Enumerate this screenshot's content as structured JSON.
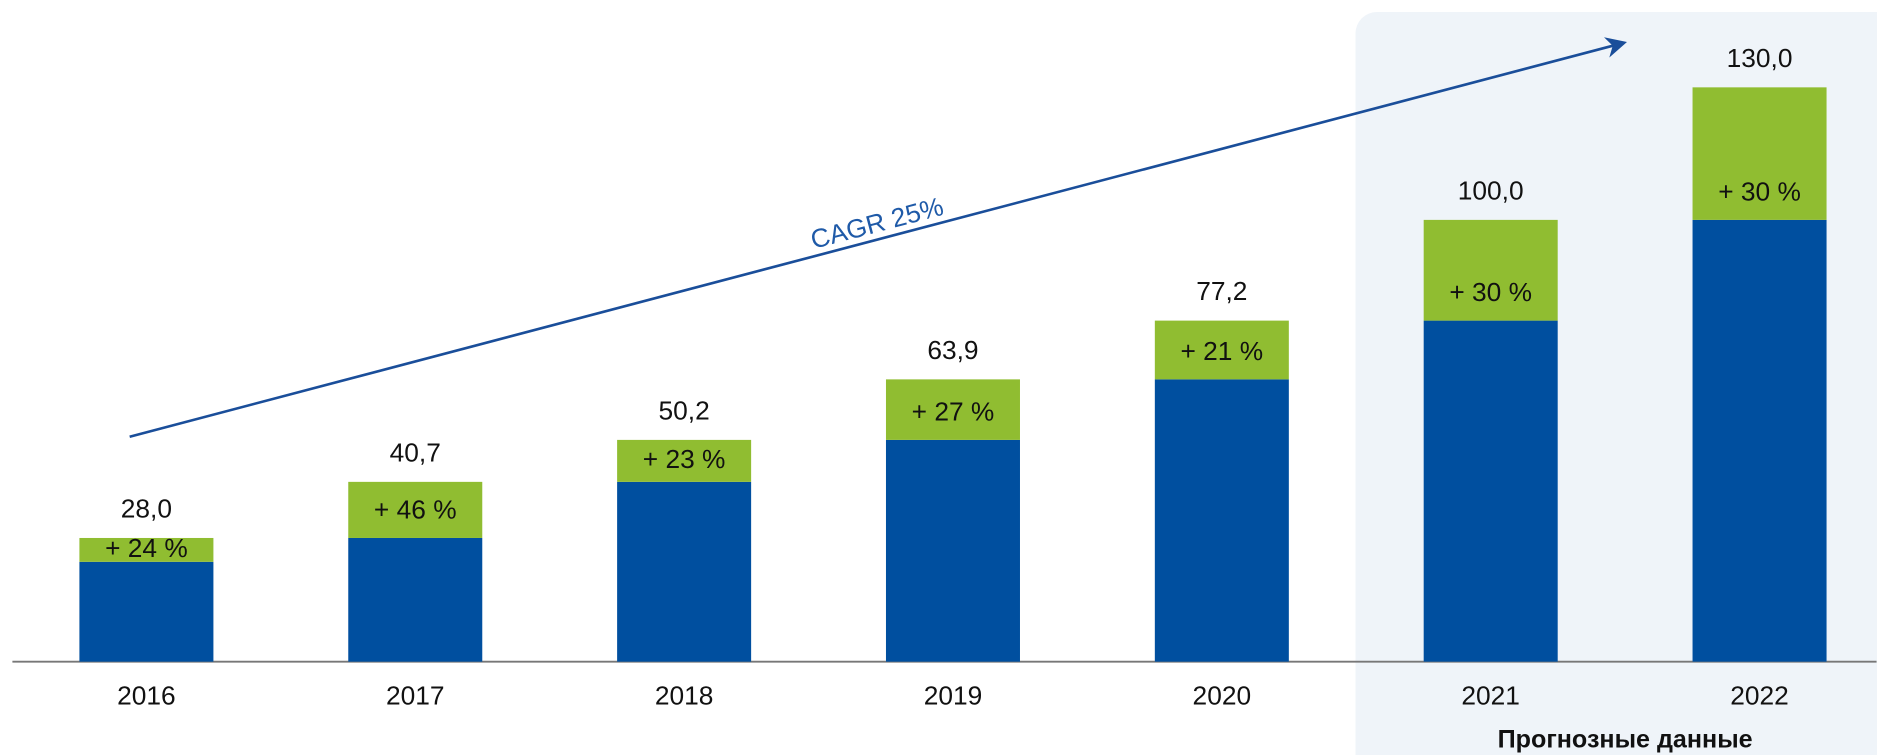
{
  "chart_data": {
    "type": "bar",
    "stacked": true,
    "categories": [
      "2016",
      "2017",
      "2018",
      "2019",
      "2020",
      "2021",
      "2022"
    ],
    "series": [
      {
        "color": "#004f9f",
        "values": [
          22.6,
          28.0,
          40.7,
          50.2,
          63.9,
          77.2,
          100.0
        ]
      },
      {
        "color": "#90bd31",
        "values": [
          5.4,
          12.7,
          9.5,
          13.7,
          13.3,
          22.8,
          30.0
        ]
      }
    ],
    "totals": [
      28.0,
      40.7,
      50.2,
      63.9,
      77.2,
      100.0,
      130.0
    ],
    "total_labels": [
      "28,0",
      "40,7",
      "50,2",
      "63,9",
      "77,2",
      "100,0",
      "130,0"
    ],
    "growth_rates": [
      24,
      46,
      23,
      27,
      21,
      30,
      30
    ],
    "growth_labels": [
      "+ 24 %",
      "+ 46 %",
      "+ 23 %",
      "+ 27 %",
      "+ 21 %",
      "+ 30 %",
      "+ 30 %"
    ],
    "ylim": [
      0,
      130
    ],
    "annotation": "CAGR 25%",
    "forecast_from": "2021",
    "forecast_label": "Прогнозные данные"
  }
}
